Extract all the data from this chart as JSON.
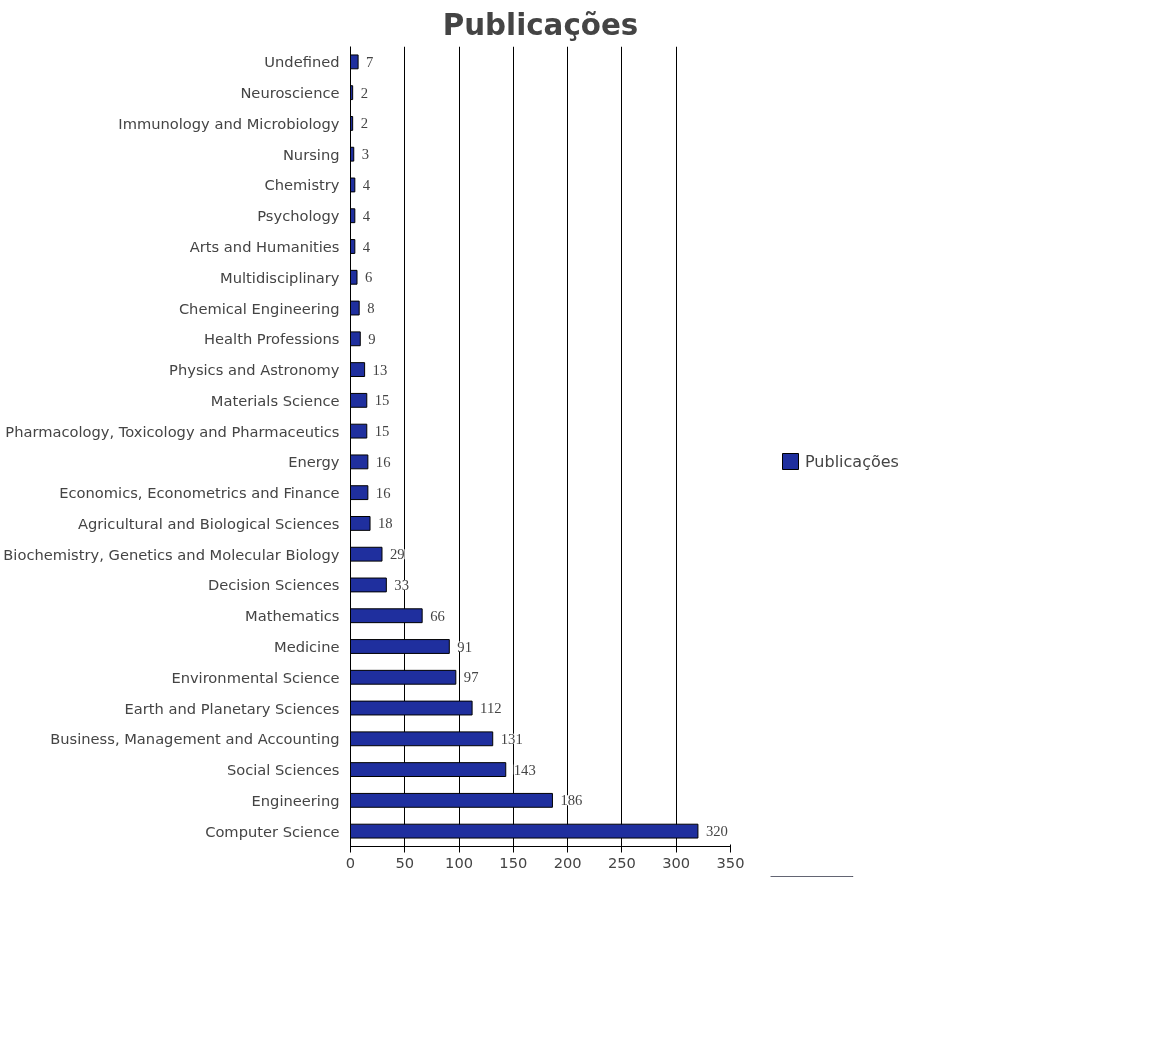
{
  "chart_data": {
    "type": "bar",
    "orientation": "horizontal",
    "title": "Publicações",
    "categories": [
      "Undefined",
      "Neuroscience",
      "Immunology and Microbiology",
      "Nursing",
      "Chemistry",
      "Psychology",
      "Arts and Humanities",
      "Multidisciplinary",
      "Chemical Engineering",
      "Health Professions",
      "Physics and Astronomy",
      "Materials Science",
      "Pharmacology, Toxicology and Pharmaceutics",
      "Energy",
      "Economics, Econometrics and Finance",
      "Agricultural and Biological Sciences",
      "Biochemistry, Genetics and Molecular Biology",
      "Decision Sciences",
      "Mathematics",
      "Medicine",
      "Environmental Science",
      "Earth and Planetary Sciences",
      "Business, Management and Accounting",
      "Social Sciences",
      "Engineering",
      "Computer Science"
    ],
    "series": [
      {
        "name": "Publicações",
        "color": "#1f2f9e",
        "values": [
          7,
          2,
          2,
          3,
          4,
          4,
          4,
          6,
          8,
          9,
          13,
          15,
          15,
          16,
          16,
          18,
          29,
          33,
          66,
          91,
          97,
          112,
          131,
          143,
          186,
          320
        ]
      }
    ],
    "xlim": [
      0,
      350
    ],
    "xticks": [
      0,
      50,
      100,
      150,
      200,
      250,
      300,
      350
    ],
    "grid": "x",
    "legend": "right",
    "data_labels": true
  }
}
